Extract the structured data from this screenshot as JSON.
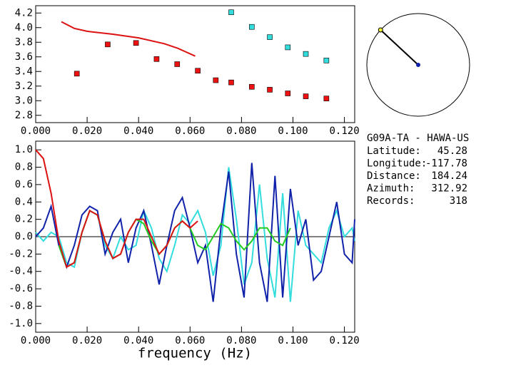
{
  "chart_data": [
    {
      "type": "scatter",
      "xlim": [
        0,
        0.124
      ],
      "ylim": [
        2.7,
        4.3
      ],
      "xticks": [
        {
          "value": 0,
          "label": "0.000"
        },
        {
          "value": 0.02,
          "label": "0.020"
        },
        {
          "value": 0.04,
          "label": "0.040"
        },
        {
          "value": 0.06,
          "label": "0.060"
        },
        {
          "value": 0.08,
          "label": "0.080"
        },
        {
          "value": 0.1,
          "label": "0.100"
        },
        {
          "value": 0.12,
          "label": "0.120"
        }
      ],
      "yticks": [
        {
          "value": 2.8,
          "label": "2.8"
        },
        {
          "value": 3.0,
          "label": "3.0"
        },
        {
          "value": 3.2,
          "label": "3.2"
        },
        {
          "value": 3.4,
          "label": "3.4"
        },
        {
          "value": 3.6,
          "label": "3.6"
        },
        {
          "value": 3.8,
          "label": "3.8"
        },
        {
          "value": 4.0,
          "label": "4.0"
        },
        {
          "value": 4.2,
          "label": "4.2"
        }
      ],
      "series": [
        {
          "color": "#ee1111",
          "mode": "markers",
          "x": [
            0.016,
            0.028,
            0.039,
            0.047,
            0.055,
            0.063,
            0.07,
            0.076,
            0.084,
            0.091,
            0.098,
            0.105,
            0.113
          ],
          "values": [
            3.37,
            3.77,
            3.79,
            3.57,
            3.5,
            3.41,
            3.28,
            3.25,
            3.19,
            3.15,
            3.1,
            3.06,
            3.03
          ]
        },
        {
          "color": "#33dddd",
          "mode": "markers",
          "x": [
            0.076,
            0.084,
            0.091,
            0.098,
            0.105,
            0.113
          ],
          "values": [
            4.21,
            4.01,
            3.87,
            3.73,
            3.64,
            3.55
          ]
        },
        {
          "color": "#dd1111",
          "mode": "lines",
          "x": [
            0.01,
            0.015,
            0.02,
            0.03,
            0.04,
            0.05,
            0.055,
            0.062
          ],
          "values": [
            4.08,
            3.99,
            3.95,
            3.91,
            3.86,
            3.78,
            3.72,
            3.61
          ]
        }
      ]
    },
    {
      "type": "line",
      "x_label": "frequency (Hz)",
      "xlim": [
        0,
        0.124
      ],
      "ylim": [
        -1.1,
        1.1
      ],
      "xticks": [
        {
          "value": 0,
          "label": "0.000"
        },
        {
          "value": 0.02,
          "label": "0.020"
        },
        {
          "value": 0.04,
          "label": "0.040"
        },
        {
          "value": 0.06,
          "label": "0.060"
        },
        {
          "value": 0.08,
          "label": "0.080"
        },
        {
          "value": 0.1,
          "label": "0.100"
        },
        {
          "value": 0.12,
          "label": "0.120"
        }
      ],
      "yticks": [
        {
          "value": -1.0,
          "label": "-1.0"
        },
        -0.8,
        -0.6,
        -0.4,
        -0.2,
        {
          "value": 0,
          "label": "0.0"
        },
        0.2,
        0.4,
        0.6,
        0.8,
        {
          "value": 1.0,
          "label": "1.0"
        }
      ],
      "x": [
        0,
        0.003,
        0.006,
        0.009,
        0.012,
        0.015,
        0.018,
        0.021,
        0.024,
        0.027,
        0.03,
        0.033,
        0.036,
        0.039,
        0.042,
        0.045,
        0.048,
        0.051,
        0.054,
        0.057,
        0.06,
        0.063,
        0.066,
        0.069,
        0.072,
        0.075,
        0.078,
        0.081,
        0.084,
        0.087,
        0.09,
        0.093,
        0.096,
        0.099,
        0.102,
        0.105,
        0.108,
        0.111,
        0.114,
        0.117,
        0.12,
        0.123,
        0.124
      ],
      "series": [
        {
          "color": "#33dddd",
          "values": [
            0.05,
            -0.05,
            0.05,
            0.0,
            -0.3,
            -0.35,
            0.05,
            0.3,
            0.25,
            -0.1,
            -0.25,
            0.0,
            -0.15,
            -0.1,
            0.3,
            0.1,
            -0.25,
            -0.4,
            -0.1,
            0.25,
            0.15,
            0.3,
            0.05,
            -0.45,
            -0.1,
            0.8,
            0.2,
            -0.55,
            -0.3,
            0.6,
            -0.25,
            -0.7,
            0.5,
            -0.75,
            0.3,
            -0.1,
            -0.2,
            -0.3,
            0.1,
            0.3,
            0.0,
            0.1,
            -0.05
          ]
        },
        {
          "color": "#1122aa",
          "values": [
            0,
            0.1,
            0.35,
            -0.1,
            -0.35,
            -0.1,
            0.25,
            0.35,
            0.3,
            -0.2,
            0.05,
            0.2,
            -0.3,
            0.1,
            0.3,
            -0.1,
            -0.55,
            -0.1,
            0.3,
            0.45,
            0.1,
            -0.3,
            -0.1,
            -0.75,
            0.1,
            0.75,
            -0.2,
            -0.7,
            0.85,
            -0.3,
            -0.75,
            0.7,
            -0.7,
            0.55,
            -0.1,
            0.2,
            -0.5,
            -0.4,
            0.0,
            0.4,
            -0.2,
            -0.3,
            0.2
          ]
        },
        {
          "color": "#22cc22",
          "values": [
            null,
            null,
            null,
            -0.1,
            -0.35,
            -0.3,
            0.05,
            0.3,
            0.25,
            -0.05,
            -0.25,
            -0.2,
            0.05,
            0.2,
            0.15,
            -0.05,
            -0.2,
            -0.1,
            0.1,
            0.18,
            0.1,
            -0.1,
            -0.15,
            0.0,
            0.15,
            0.1,
            -0.05,
            -0.15,
            -0.05,
            0.1,
            0.1,
            -0.05,
            -0.1,
            0.1,
            null,
            null,
            null,
            null,
            null,
            null,
            null,
            null,
            null
          ]
        },
        {
          "color": "#dd1111",
          "values": [
            1.0,
            0.9,
            0.5,
            -0.05,
            -0.35,
            -0.3,
            0.05,
            0.3,
            0.25,
            -0.05,
            -0.25,
            -0.2,
            0.05,
            0.2,
            0.2,
            0.0,
            -0.2,
            -0.1,
            0.1,
            0.18,
            0.1,
            0.18,
            null,
            null,
            null,
            null,
            null,
            null,
            null,
            null,
            null,
            null,
            null,
            null,
            null,
            null,
            null,
            null,
            null,
            null,
            null,
            null,
            null
          ]
        }
      ]
    }
  ],
  "info": {
    "title": "G09A-TA  -  HAWA-US",
    "rows": [
      {
        "label": "Latitude:",
        "value": 45.28
      },
      {
        "label": "Longitude:",
        "value": -117.78
      },
      {
        "label": "Distance:",
        "value": 184.24
      },
      {
        "label": "Azimuth:",
        "value": 312.92
      },
      {
        "label": "Records:",
        "value": 318
      }
    ]
  }
}
